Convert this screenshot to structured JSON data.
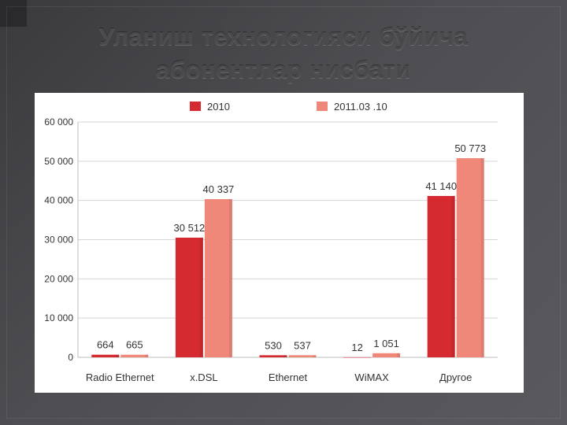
{
  "page": {
    "title_line1": "Уланиш технологияси бўйича",
    "title_line2": "абонентлар нисбати"
  },
  "colors": {
    "series_2010": "#d42a30",
    "series_2011": "#f0887a",
    "grid": "#d5d5d5"
  },
  "chart_data": {
    "type": "bar",
    "categories": [
      "Radio Ethernet",
      "x.DSL",
      "Ethernet",
      "WiMAX",
      "Другое"
    ],
    "series": [
      {
        "name": "2010",
        "values": [
          664,
          30512,
          530,
          12,
          41140
        ],
        "value_labels": [
          "664",
          "30 512",
          "530",
          "12",
          "41 140"
        ]
      },
      {
        "name": "2011.03 .10",
        "values": [
          665,
          40337,
          537,
          1051,
          50773
        ],
        "value_labels": [
          "665",
          "40 337",
          "537",
          "1 051",
          "50 773"
        ]
      }
    ],
    "y_ticks": [
      0,
      10000,
      20000,
      30000,
      40000,
      50000,
      60000
    ],
    "y_tick_labels": [
      "0",
      "10 000",
      "20 000",
      "30 000",
      "40 000",
      "50 000",
      "60 000"
    ],
    "ylim": [
      0,
      60000
    ],
    "grid": true,
    "legend_position": "top"
  }
}
